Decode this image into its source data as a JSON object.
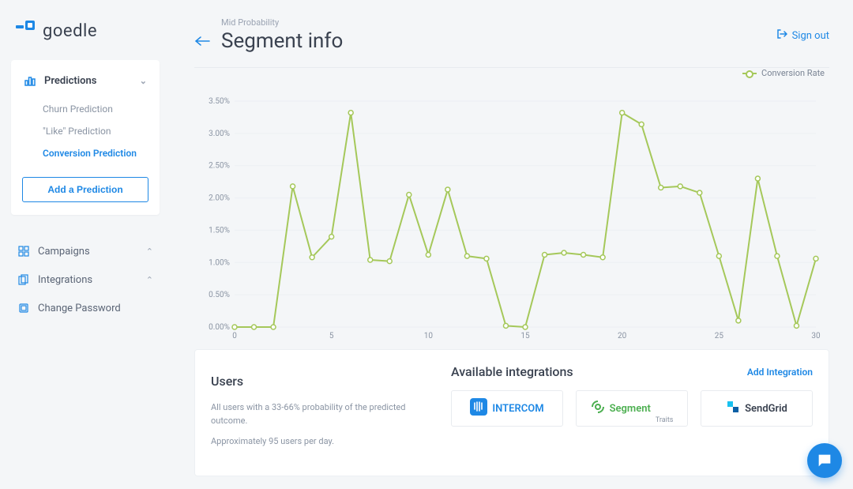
{
  "brand": {
    "name": "goedle",
    "logo_color": "#1e88e5"
  },
  "sidebar": {
    "predictions": {
      "label": "Predictions",
      "items": [
        {
          "label": "Churn Prediction",
          "active": false
        },
        {
          "label": "\"Like\" Prediction",
          "active": false
        },
        {
          "label": "Conversion Prediction",
          "active": true
        }
      ],
      "add_label": "Add a Prediction"
    },
    "nav": [
      {
        "label": "Campaigns",
        "icon": "grid"
      },
      {
        "label": "Integrations",
        "icon": "copy"
      },
      {
        "label": "Change Password",
        "icon": "key"
      }
    ]
  },
  "header": {
    "eyebrow": "Mid Probability",
    "title": "Segment info",
    "signout": "Sign out"
  },
  "chart": {
    "type": "line",
    "legend_label": "Conversion Rate",
    "series_color": "#a5c85a",
    "marker_fill": "#ffffff",
    "grid_color": "#eceff3",
    "axis_color": "#c7ccd4",
    "tick_font_size": 10,
    "tick_color": "#8a94a3",
    "y": {
      "min": 0,
      "max": 3.5,
      "step": 0.5,
      "format_suffix": "%",
      "decimals": 2
    },
    "x": {
      "min": 0,
      "max": 30,
      "step": 5
    },
    "values": [
      0.0,
      0.0,
      0.0,
      2.18,
      1.08,
      1.4,
      3.32,
      1.04,
      1.02,
      2.05,
      1.12,
      2.13,
      1.1,
      1.06,
      0.02,
      0.0,
      1.12,
      1.15,
      1.12,
      1.08,
      3.32,
      3.14,
      2.16,
      2.18,
      2.08,
      1.1,
      0.1,
      2.3,
      1.1,
      0.02,
      1.06
    ],
    "line_width": 2,
    "marker_radius": 3
  },
  "panel": {
    "users": {
      "title": "Users",
      "desc": "All users with a 33-66% probability of the predicted outcome.",
      "approx": "Approximately 95 users per day."
    },
    "integrations": {
      "title": "Available integrations",
      "add_label": "Add Integration",
      "items": [
        {
          "name": "INTERCOM",
          "icon_color": "#1e88e5",
          "text_color": "#1e88e5"
        },
        {
          "name": "Segment",
          "sub": "Traits",
          "icon_color": "#4caf50",
          "text_color": "#4caf50"
        },
        {
          "name": "SendGrid",
          "icon_color": "#2196f3",
          "text_color": "#3a4250"
        }
      ]
    }
  },
  "colors": {
    "accent": "#1e88e5",
    "text": "#3a4250",
    "muted": "#8a94a3",
    "bg": "#f4f6f8"
  }
}
